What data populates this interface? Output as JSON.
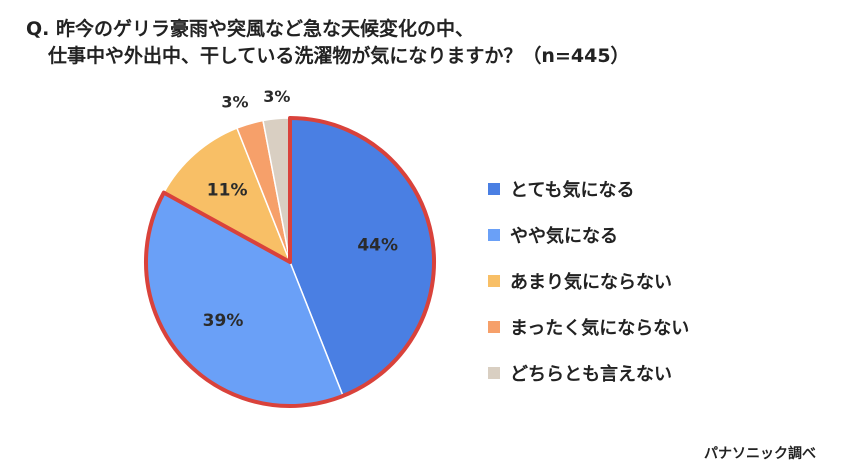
{
  "question": {
    "line1": "Q. 昨今のゲリラ豪雨や突風など急な天候変化の中、",
    "line2": "仕事中や外出中、干している洗濯物が気になりますか？（n=445）"
  },
  "chart_data": {
    "type": "pie",
    "categories": [
      "とても気になる",
      "やや気になる",
      "あまり気にならない",
      "まったく気にならない",
      "どちらとも言えない"
    ],
    "values": [
      44,
      39,
      11,
      3,
      3
    ],
    "labels": [
      "44%",
      "39%",
      "11%",
      "3%",
      "3%"
    ],
    "colors": [
      "#4a7fe3",
      "#6aa0f7",
      "#f8bf66",
      "#f6a06a",
      "#d9cfc2"
    ],
    "highlight_outline_color": "#d9423b",
    "legend_position": "right"
  },
  "source": "パナソニック調べ"
}
